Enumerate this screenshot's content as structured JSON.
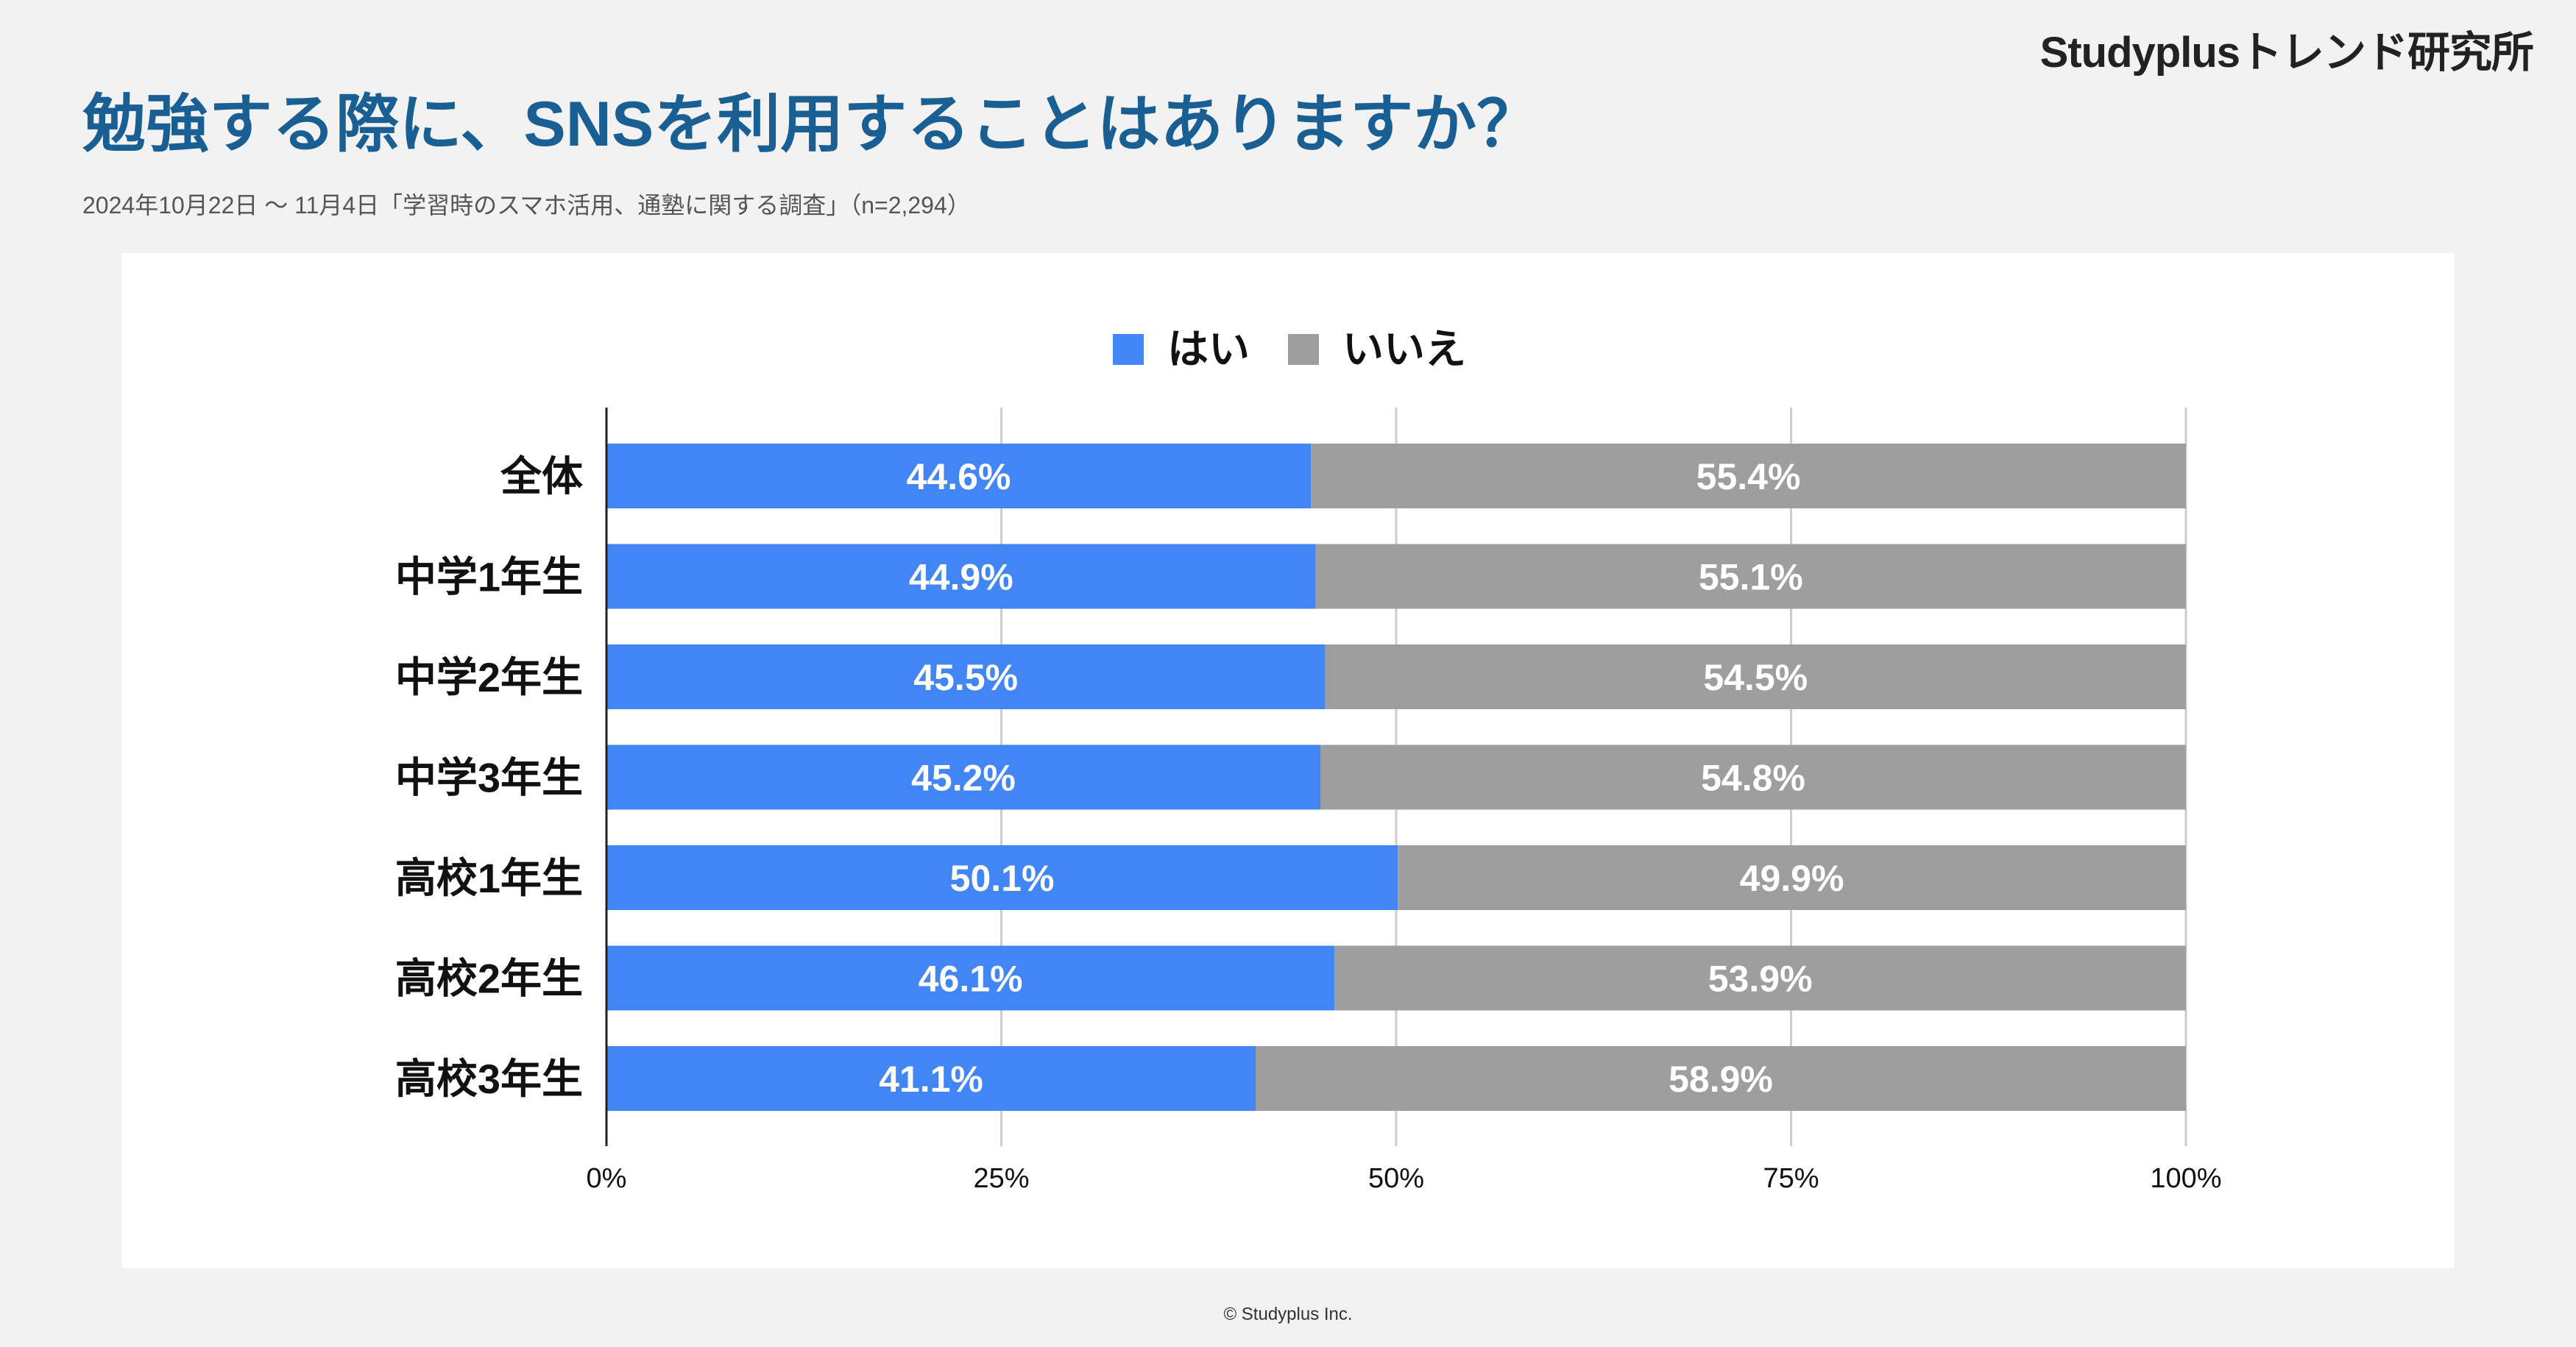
{
  "header": {
    "brand": "Studyplusトレンド研究所",
    "title": "勉強する際に、SNSを利用することはありますか？",
    "subtitle": "2024年10月22日 〜 11月4日「学習時のスマホ活用、通塾に関する調査」（n=2,294）"
  },
  "footer": {
    "copyright": "© Studyplus Inc."
  },
  "colors": {
    "yes": "#4285f4",
    "no": "#9e9e9e",
    "title": "#1a5f94"
  },
  "chart_data": {
    "type": "bar",
    "orientation": "horizontal",
    "stacked": true,
    "title": "勉強する際に、SNSを利用することはありますか？",
    "categories": [
      "全体",
      "中学1年生",
      "中学2年生",
      "中学3年生",
      "高校1年生",
      "高校2年生",
      "高校3年生"
    ],
    "series": [
      {
        "name": "はい",
        "values": [
          44.6,
          44.9,
          45.5,
          45.2,
          50.1,
          46.1,
          41.1
        ],
        "labels": [
          "44.6%",
          "44.9%",
          "45.5%",
          "45.2%",
          "50.1%",
          "46.1%",
          "41.1%"
        ]
      },
      {
        "name": "いいえ",
        "values": [
          55.4,
          55.1,
          54.5,
          54.8,
          49.9,
          53.9,
          58.9
        ],
        "labels": [
          "55.4%",
          "55.1%",
          "54.5%",
          "54.8%",
          "49.9%",
          "53.9%",
          "58.9%"
        ]
      }
    ],
    "xlim": [
      0,
      100
    ],
    "xticks": [
      0,
      25,
      50,
      75,
      100
    ],
    "xtick_labels": [
      "0%",
      "25%",
      "50%",
      "75%",
      "100%"
    ],
    "grid": true,
    "legend_position": "top-center"
  }
}
